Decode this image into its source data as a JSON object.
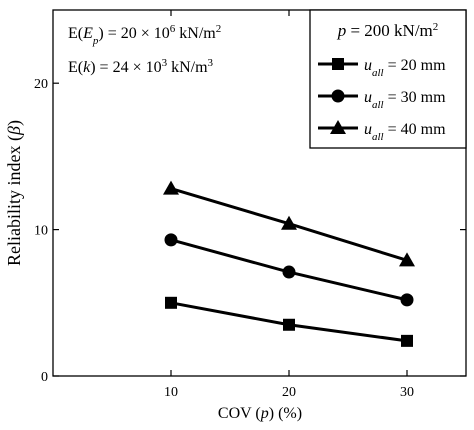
{
  "chart_data": {
    "type": "line",
    "xlabel_parts": [
      "COV (",
      "p",
      ") (%)"
    ],
    "ylabel_parts": [
      "Reliability index  (",
      "β",
      ")"
    ],
    "x": [
      10,
      20,
      30
    ],
    "xlim": [
      0,
      35
    ],
    "ylim": [
      0,
      25
    ],
    "xticks": [
      10,
      20,
      30
    ],
    "yticks": [
      0,
      10,
      20
    ],
    "grid": false,
    "legend_placement": "top-right",
    "legend_title": {
      "pre": "p",
      "mid": " = 200 kN/m",
      "sup": "2"
    },
    "series": [
      {
        "name": "u_all = 20 mm",
        "label": {
          "pre": "u",
          "sub": "all",
          "post": " = 20 mm"
        },
        "marker": "square",
        "values": [
          5.0,
          3.5,
          2.4
        ]
      },
      {
        "name": "u_all = 30 mm",
        "label": {
          "pre": "u",
          "sub": "all",
          "post": " = 30 mm"
        },
        "marker": "circle",
        "values": [
          9.3,
          7.1,
          5.2
        ]
      },
      {
        "name": "u_all = 40 mm",
        "label": {
          "pre": "u",
          "sub": "all",
          "post": " = 40 mm"
        },
        "marker": "triangle",
        "values": [
          12.8,
          10.4,
          7.9
        ]
      }
    ],
    "annotations": [
      {
        "parts": [
          {
            "t": "E("
          },
          {
            "t": "E",
            "i": true
          },
          {
            "t": "p",
            "i": true,
            "sub": true
          },
          {
            "t": ") = 20 × 10"
          },
          {
            "t": "6",
            "sup": true
          },
          {
            "t": " kN/m"
          },
          {
            "t": "2",
            "sup": true
          }
        ]
      },
      {
        "parts": [
          {
            "t": "E("
          },
          {
            "t": "k",
            "i": true
          },
          {
            "t": ") = 24 × 10"
          },
          {
            "t": "3",
            "sup": true
          },
          {
            "t": " kN/m"
          },
          {
            "t": "3",
            "sup": true
          }
        ]
      }
    ],
    "colors": {
      "line": "#000000",
      "background": "#ffffff"
    }
  }
}
